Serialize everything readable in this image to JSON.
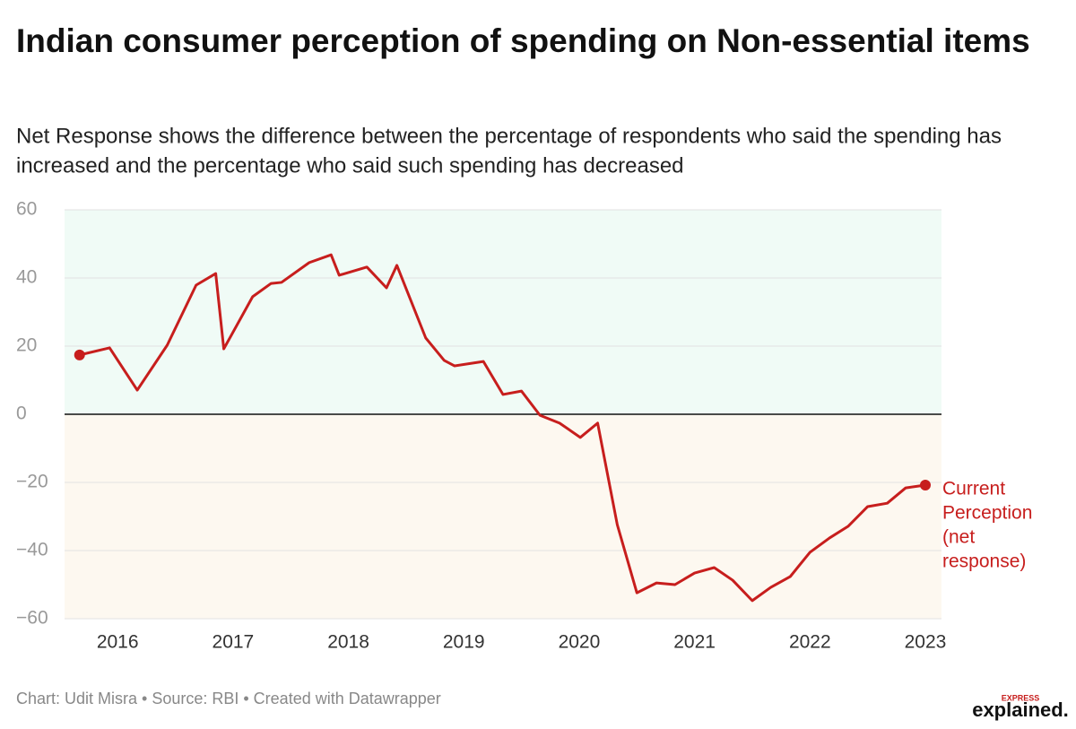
{
  "chart_data": {
    "type": "line",
    "title": "Indian consumer perception of spending on Non-essential items",
    "subtitle": "Net Response shows the difference between the percentage of respondents who said the spending has increased and the percentage who said such spending has decreased",
    "x": [
      2015.67,
      2015.93,
      2016.17,
      2016.43,
      2016.68,
      2016.85,
      2016.92,
      2017.17,
      2017.33,
      2017.42,
      2017.66,
      2017.85,
      2017.92,
      2018.16,
      2018.33,
      2018.42,
      2018.67,
      2018.83,
      2018.92,
      2019.17,
      2019.34,
      2019.5,
      2019.66,
      2019.83,
      2020.01,
      2020.16,
      2020.33,
      2020.5,
      2020.67,
      2020.83,
      2021.0,
      2021.17,
      2021.33,
      2021.5,
      2021.66,
      2021.83,
      2022.0,
      2022.17,
      2022.33,
      2022.5,
      2022.67,
      2022.83,
      2023.0
    ],
    "series": [
      {
        "color": "#c71e1d",
        "values": [
          17.4,
          19.5,
          7.1,
          20.3,
          37.9,
          41.3,
          19.2,
          34.5,
          38.4,
          38.7,
          44.5,
          46.8,
          40.8,
          43.2,
          37.1,
          43.7,
          22.4,
          15.8,
          14.2,
          15.5,
          5.8,
          6.8,
          -0.3,
          -2.6,
          -6.8,
          -2.6,
          -32.4,
          -52.4,
          -49.5,
          -50.0,
          -46.6,
          -45.0,
          -48.7,
          -54.7,
          -50.8,
          -47.6,
          -40.5,
          -36.3,
          -32.9,
          -27.1,
          -26.1,
          -21.6,
          -20.8
        ]
      }
    ],
    "xlim": [
      2015.54,
      2023.14
    ],
    "xticks": [
      2016,
      2017,
      2018,
      2019,
      2020,
      2021,
      2022,
      2023
    ],
    "ylim": [
      -60,
      60
    ],
    "yticks": [
      {
        "value": -60,
        "label": "−60"
      },
      {
        "value": -40,
        "label": "−40"
      },
      {
        "value": -20,
        "label": "−20"
      },
      0,
      20,
      40,
      60
    ],
    "grid": true,
    "positive_band_color": "#f0fbf6",
    "negative_band_color": "#fdf8f0",
    "annotation": [
      "Current",
      "Perception",
      "(net",
      "response)"
    ],
    "footer": "Chart: Udit Misra • Source: RBI • Created with Datawrapper",
    "logo": [
      "EXPRESS",
      "explained."
    ]
  }
}
